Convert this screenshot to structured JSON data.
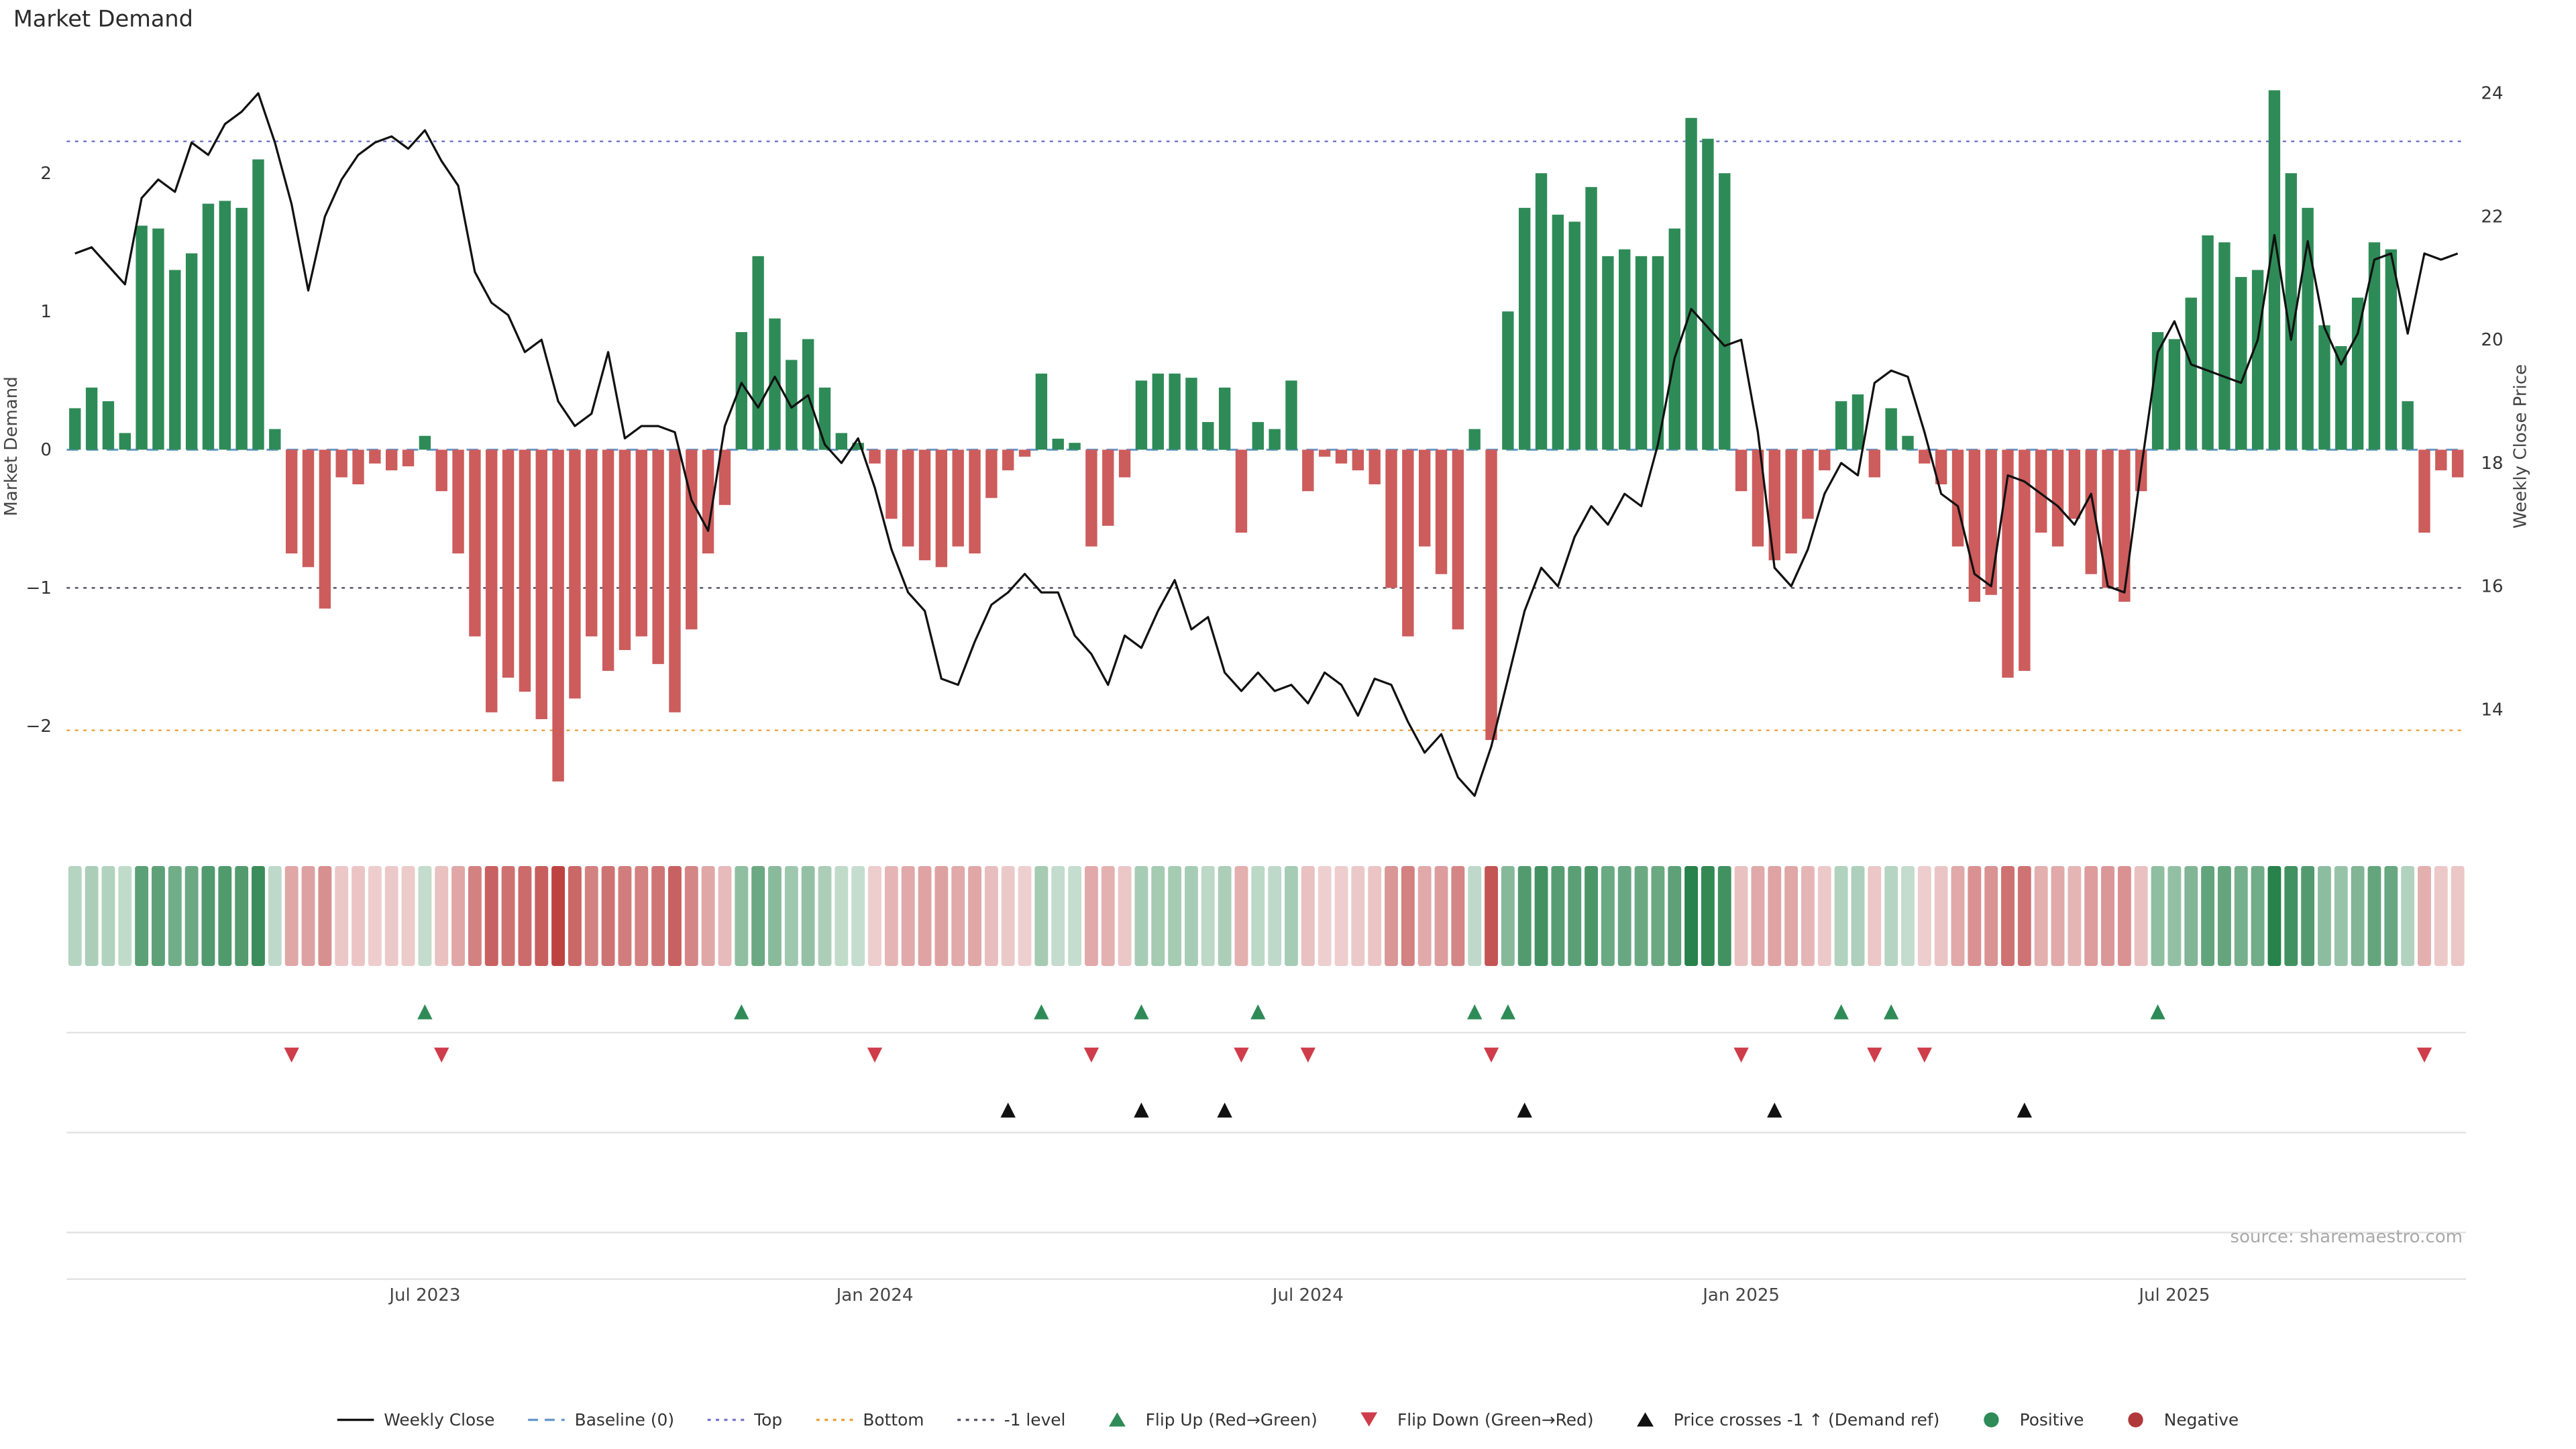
{
  "title": "Market Demand",
  "source": "source: sharemaestro.com",
  "axes": {
    "left_label": "Market Demand",
    "right_label": "Weekly Close Price",
    "left_ticks": [
      {
        "label": "2",
        "value": 2
      },
      {
        "label": "1",
        "value": 1
      },
      {
        "label": "0",
        "value": 0
      },
      {
        "label": "−1",
        "value": -1
      },
      {
        "label": "−2",
        "value": -2
      }
    ],
    "right_ticks": [
      {
        "label": "24",
        "value": 24
      },
      {
        "label": "22",
        "value": 22
      },
      {
        "label": "20",
        "value": 20
      },
      {
        "label": "18",
        "value": 18
      },
      {
        "label": "16",
        "value": 16
      },
      {
        "label": "14",
        "value": 14
      }
    ],
    "x_ticks": [
      {
        "label": "Jul 2023",
        "week": 21
      },
      {
        "label": "Jan 2024",
        "week": 48
      },
      {
        "label": "Jul 2024",
        "week": 74
      },
      {
        "label": "Jan 2025",
        "week": 100
      },
      {
        "label": "Jul 2025",
        "week": 126
      }
    ]
  },
  "chart_data": {
    "type": "bar+line",
    "x_unit": "week_index",
    "n_weeks": 144,
    "left_ylim": [
      -2.85,
      2.85
    ],
    "right_ylim": [
      12.2,
      24.6
    ],
    "reference_lines": {
      "baseline": 0,
      "top": 2.23,
      "minus_one": -1,
      "bottom": -2.03
    },
    "demand": [
      0.3,
      0.45,
      0.35,
      0.12,
      1.62,
      1.6,
      1.3,
      1.42,
      1.78,
      1.8,
      1.75,
      2.1,
      0.15,
      -0.75,
      -0.85,
      -1.15,
      -0.2,
      -0.25,
      -0.1,
      -0.15,
      -0.12,
      0.1,
      -0.3,
      -0.75,
      -1.35,
      -1.9,
      -1.65,
      -1.75,
      -1.95,
      -2.4,
      -1.8,
      -1.35,
      -1.6,
      -1.45,
      -1.35,
      -1.55,
      -1.9,
      -1.3,
      -0.75,
      -0.4,
      0.85,
      1.4,
      0.95,
      0.65,
      0.8,
      0.45,
      0.12,
      0.05,
      -0.1,
      -0.5,
      -0.7,
      -0.8,
      -0.85,
      -0.7,
      -0.75,
      -0.35,
      -0.15,
      -0.05,
      0.55,
      0.08,
      0.05,
      -0.7,
      -0.55,
      -0.2,
      0.5,
      0.55,
      0.55,
      0.52,
      0.2,
      0.45,
      -0.6,
      0.2,
      0.15,
      0.5,
      -0.3,
      -0.05,
      -0.1,
      -0.15,
      -0.25,
      -1.0,
      -1.35,
      -0.7,
      -0.9,
      -1.3,
      0.15,
      -2.1,
      1.0,
      1.75,
      2.0,
      1.7,
      1.65,
      1.9,
      1.4,
      1.45,
      1.4,
      1.4,
      1.6,
      2.4,
      2.25,
      2.0,
      -0.3,
      -0.7,
      -0.8,
      -0.75,
      -0.5,
      -0.15,
      0.35,
      0.4,
      -0.2,
      0.3,
      0.1,
      -0.1,
      -0.25,
      -0.7,
      -1.1,
      -1.05,
      -1.65,
      -1.6,
      -0.6,
      -0.7,
      -0.5,
      -0.9,
      -1.0,
      -1.1,
      -0.3,
      0.85,
      0.8,
      1.1,
      1.55,
      1.5,
      1.25,
      1.3,
      2.6,
      2.0,
      1.75,
      0.9,
      0.75,
      1.1,
      1.5,
      1.45,
      0.35,
      -0.6,
      -0.15,
      -0.2
    ],
    "price": [
      21.4,
      21.5,
      21.2,
      20.9,
      22.3,
      22.6,
      22.4,
      23.2,
      23.0,
      23.5,
      23.7,
      24.0,
      23.2,
      22.2,
      20.8,
      22.0,
      22.6,
      23.0,
      23.2,
      23.3,
      23.1,
      23.4,
      22.9,
      22.5,
      21.1,
      20.6,
      20.4,
      19.8,
      20.0,
      19.0,
      18.6,
      18.8,
      19.8,
      18.4,
      18.6,
      18.6,
      18.5,
      17.4,
      16.9,
      18.6,
      19.3,
      18.9,
      19.4,
      18.9,
      19.1,
      18.3,
      18.0,
      18.4,
      17.6,
      16.6,
      15.9,
      15.6,
      14.5,
      14.4,
      15.1,
      15.7,
      15.9,
      16.2,
      15.9,
      15.9,
      15.2,
      14.9,
      14.4,
      15.2,
      15.0,
      15.6,
      16.1,
      15.3,
      15.5,
      14.6,
      14.3,
      14.6,
      14.3,
      14.4,
      14.1,
      14.6,
      14.4,
      13.9,
      14.5,
      14.4,
      13.8,
      13.3,
      13.6,
      12.9,
      12.6,
      13.4,
      14.5,
      15.6,
      16.3,
      16.0,
      16.8,
      17.3,
      17.0,
      17.5,
      17.3,
      18.3,
      19.7,
      20.5,
      20.2,
      19.9,
      20.0,
      18.5,
      16.3,
      16.0,
      16.6,
      17.5,
      18.0,
      17.8,
      19.3,
      19.5,
      19.4,
      18.5,
      17.5,
      17.3,
      16.2,
      16.0,
      17.8,
      17.7,
      17.5,
      17.3,
      17.0,
      17.5,
      16.0,
      15.9,
      17.9,
      19.8,
      20.3,
      19.6,
      19.5,
      19.4,
      19.3,
      20.0,
      21.7,
      20.0,
      21.6,
      20.2,
      19.6,
      20.1,
      21.3,
      21.4,
      20.1,
      21.4,
      21.3,
      21.4
    ],
    "markers": {
      "price_crosses_minus1_weeks": [
        56,
        64,
        69,
        87,
        102,
        117
      ]
    },
    "colors": {
      "positive": "#2e8b57",
      "negative": "#cd5c5c",
      "price_line": "#111111",
      "baseline": "#6699cc",
      "top": "#7777cc",
      "bottom": "#e8a23d",
      "minus_one": "#555566",
      "flip_up": "#2e8b57",
      "flip_down": "#cf3d4a",
      "cross": "#111111",
      "grid": "#e3e3e3"
    }
  },
  "legend": {
    "items": [
      {
        "label": "Weekly Close",
        "glyph": "line",
        "color": "#111111"
      },
      {
        "label": "Baseline (0)",
        "glyph": "dashed",
        "color": "#6699cc"
      },
      {
        "label": "Top",
        "glyph": "dotted",
        "color": "#7777cc"
      },
      {
        "label": "Bottom",
        "glyph": "dotted",
        "color": "#e8a23d"
      },
      {
        "label": "-1 level",
        "glyph": "dotted",
        "color": "#555566"
      },
      {
        "label": "Flip Up (Red→Green)",
        "glyph": "triangle-up",
        "color": "#2e8b57"
      },
      {
        "label": "Flip Down (Green→Red)",
        "glyph": "triangle-down",
        "color": "#cf3d4a"
      },
      {
        "label": "Price crosses -1 ↑ (Demand ref)",
        "glyph": "triangle-up",
        "color": "#111111"
      },
      {
        "label": "Positive",
        "glyph": "dot",
        "color": "#2e8b57"
      },
      {
        "label": "Negative",
        "glyph": "dot",
        "color": "#b03a3a"
      }
    ]
  }
}
